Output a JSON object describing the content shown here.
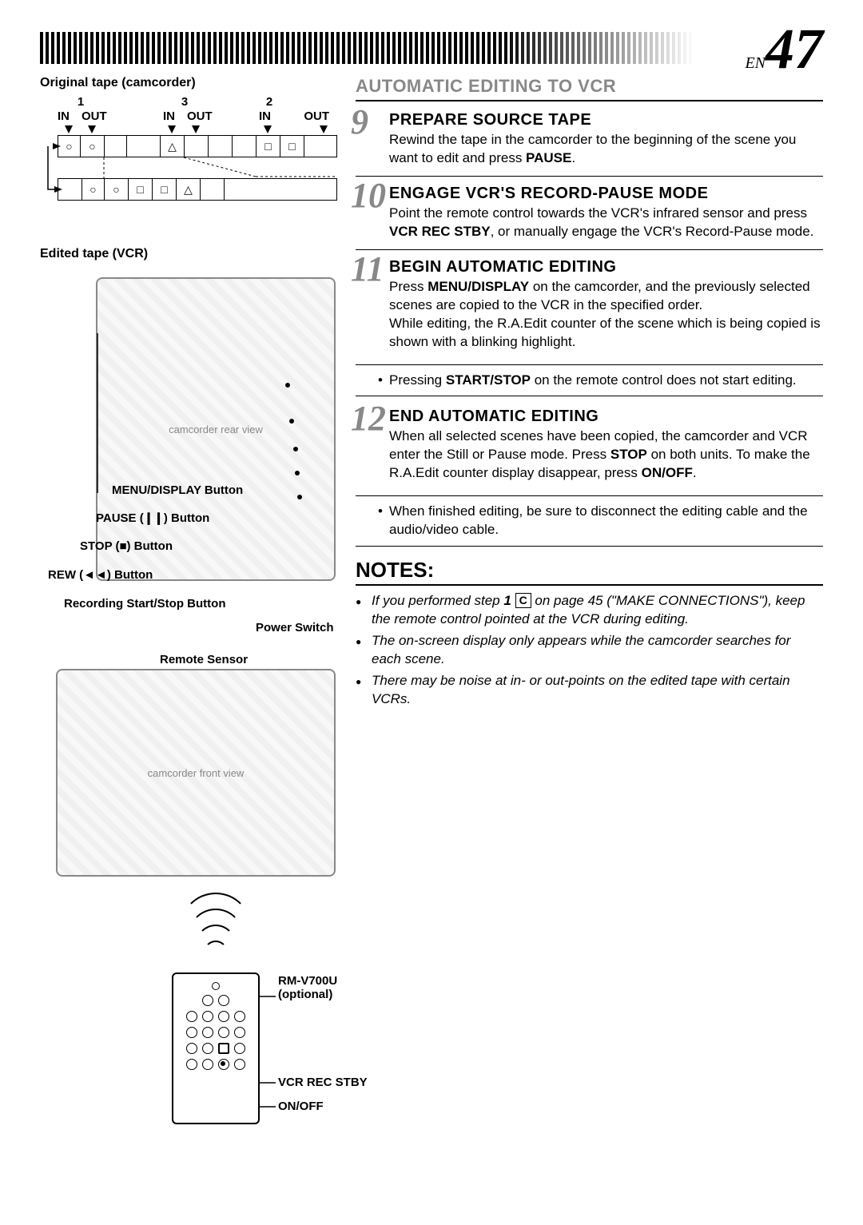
{
  "page": {
    "lang": "EN",
    "number": "47"
  },
  "left": {
    "original_label": "Original tape (camcorder)",
    "edited_label": "Edited tape (VCR)",
    "tape": {
      "markers": [
        "1",
        "3",
        "2"
      ],
      "cols": [
        "IN",
        "OUT",
        "IN",
        "OUT",
        "IN",
        "OUT"
      ]
    },
    "camcorder_callouts": {
      "menu_display": "MENU/DISPLAY Button",
      "pause": "PAUSE (❙❙) Button",
      "stop": "STOP (■) Button",
      "rew": "REW (◄◄) Button",
      "rec_start": "Recording Start/Stop Button",
      "power": "Power Switch",
      "remote_sensor": "Remote Sensor"
    },
    "remote": {
      "model": "RM-V700U",
      "opt": "(optional)",
      "vcr_rec": "VCR REC STBY",
      "onoff": "ON/OFF"
    }
  },
  "right": {
    "section_title": "AUTOMATIC EDITING TO VCR",
    "steps": [
      {
        "n": "9",
        "title": "PREPARE SOURCE TAPE",
        "body": "Rewind the tape in the camcorder to the beginning of the scene you want to edit and press <b>PAUSE</b>."
      },
      {
        "n": "10",
        "title": "ENGAGE VCR'S RECORD-PAUSE MODE",
        "body": "Point the remote control towards the VCR's infrared sensor and press <b>VCR REC STBY</b>, or manually engage the VCR's Record-Pause mode."
      },
      {
        "n": "11",
        "title": "BEGIN AUTOMATIC EDITING",
        "body": "Press <b>MENU/DISPLAY</b> on the camcorder, and the previously selected scenes are copied to the VCR in the specified order.<br>While editing, the R.A.Edit counter of the scene which is being copied is shown with a blinking highlight."
      }
    ],
    "note_11": "Pressing <b>START/STOP</b> on the remote control does not start editing.",
    "step12": {
      "n": "12",
      "title": "END AUTOMATIC EDITING",
      "body": "When all selected scenes have been copied, the camcorder and VCR enter the Still or Pause mode. Press <b>STOP</b> on both units. To make the R.A.Edit counter display disappear, press <b>ON/OFF</b>."
    },
    "note_12": "When finished editing, be sure to disconnect the editing cable and the audio/video cable.",
    "notes_title": "NOTES:",
    "notes": [
      "If you performed step <b>1</b> <span class=\"boxed-c\">C</span> on page 45 (\"MAKE CONNECTIONS\"), keep the remote control pointed at the VCR during editing.",
      "The on-screen display only appears while the camcorder searches for each scene.",
      "There may be noise at in- or out-points on the edited tape with certain VCRs."
    ]
  },
  "style": {
    "accent_gray": "#888888",
    "text_color": "#000000",
    "bg": "#ffffff",
    "body_fontsize": 17,
    "step_title_fontsize": 20,
    "section_title_fontsize": 22,
    "stepnum_fontsize": 44,
    "pagenum_fontsize": 72
  }
}
